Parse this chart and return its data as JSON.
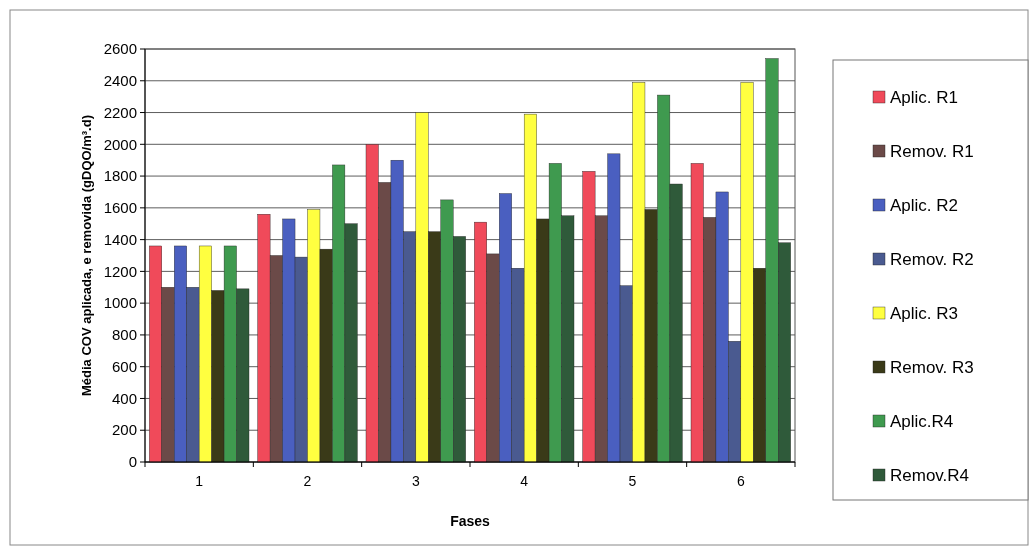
{
  "chart_data": {
    "type": "bar",
    "xlabel": "Fases",
    "ylabel": "Média COV aplicada, e removida  (gDQO/m³.d)",
    "categories": [
      "1",
      "2",
      "3",
      "4",
      "5",
      "6"
    ],
    "series": [
      {
        "name": "Aplic. R1",
        "color": "#f04a5a",
        "values": [
          1360,
          1560,
          2000,
          1510,
          1830,
          1880
        ]
      },
      {
        "name": "Remov. R1",
        "color": "#6b4a48",
        "values": [
          1100,
          1300,
          1760,
          1310,
          1550,
          1540
        ]
      },
      {
        "name": "Aplic. R2",
        "color": "#4a5fc0",
        "values": [
          1360,
          1530,
          1900,
          1690,
          1940,
          1700
        ]
      },
      {
        "name": "Remov. R2",
        "color": "#4a5a90",
        "values": [
          1100,
          1290,
          1450,
          1220,
          1110,
          760
        ]
      },
      {
        "name": "Aplic. R3",
        "color": "#ffff40",
        "values": [
          1360,
          1590,
          2200,
          2190,
          2390,
          2390
        ]
      },
      {
        "name": "Remov. R3",
        "color": "#3a3a18",
        "values": [
          1080,
          1340,
          1450,
          1530,
          1590,
          1220
        ]
      },
      {
        "name": "Aplic.R4",
        "color": "#3f9a4f",
        "values": [
          1360,
          1870,
          1650,
          1880,
          2310,
          2540
        ]
      },
      {
        "name": "Remov.R4",
        "color": "#2f5a3a",
        "values": [
          1090,
          1500,
          1420,
          1550,
          1750,
          1380
        ]
      }
    ],
    "ylim": [
      0,
      2600
    ],
    "yticks": [
      0,
      200,
      400,
      600,
      800,
      1000,
      1200,
      1400,
      1600,
      1800,
      2000,
      2200,
      2400,
      2600
    ],
    "grid": "y",
    "legend": "right"
  }
}
